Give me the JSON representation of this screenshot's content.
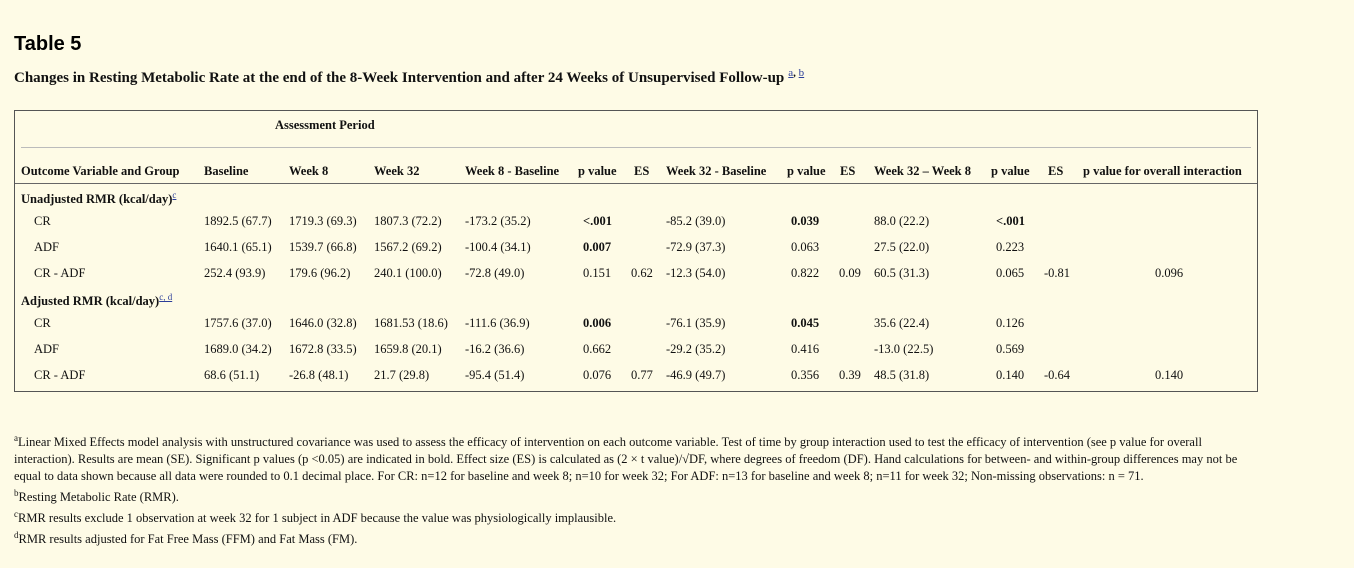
{
  "title": "Table 5",
  "caption": {
    "text": "Changes in Resting Metabolic Rate at the end of the 8-Week Intervention and after 24 Weeks of Unsupervised Follow-up",
    "link_a": "a",
    "separator": ", ",
    "link_b": "b"
  },
  "table": {
    "span_header": "Assessment Period",
    "columns": [
      "Outcome Variable and Group",
      "Baseline",
      "Week 8",
      "Week 32",
      "Week 8 - Baseline",
      "p value",
      "ES",
      "Week 32 - Baseline",
      "p value",
      "ES",
      "Week 32 – Week 8",
      "p value",
      "ES",
      "p value for overall interaction"
    ],
    "groups": [
      {
        "label": "Unadjusted RMR (kcal/day)",
        "sup": "c",
        "rows": [
          [
            "CR",
            "1892.5 (67.7)",
            "1719.3 (69.3)",
            "1807.3 (72.2)",
            "-173.2 (35.2)",
            "<.001",
            "",
            "-85.2 (39.0)",
            "0.039",
            "",
            "88.0 (22.2)",
            "<.001",
            "",
            ""
          ],
          [
            "ADF",
            "1640.1 (65.1)",
            "1539.7 (66.8)",
            "1567.2 (69.2)",
            "-100.4 (34.1)",
            "0.007",
            "",
            "-72.9 (37.3)",
            "0.063",
            "",
            "27.5 (22.0)",
            "0.223",
            "",
            ""
          ],
          [
            "CR - ADF",
            "252.4 (93.9)",
            "179.6 (96.2)",
            "240.1 (100.0)",
            "-72.8 (49.0)",
            "0.151",
            "0.62",
            "-12.3 (54.0)",
            "0.822",
            "0.09",
            "60.5 (31.3)",
            "0.065",
            "-0.81",
            "0.096"
          ]
        ]
      },
      {
        "label": "Adjusted RMR (kcal/day)",
        "sup": "c, d",
        "rows": [
          [
            "CR",
            "1757.6 (37.0)",
            "1646.0 (32.8)",
            "1681.53 (18.6)",
            "-111.6 (36.9)",
            "0.006",
            "",
            "-76.1 (35.9)",
            "0.045",
            "",
            "35.6 (22.4)",
            "0.126",
            "",
            ""
          ],
          [
            "ADF",
            "1689.0 (34.2)",
            "1672.8 (33.5)",
            "1659.8 (20.1)",
            "-16.2 (36.6)",
            "0.662",
            "",
            "-29.2 (35.2)",
            "0.416",
            "",
            "-13.0 (22.5)",
            "0.569",
            "",
            ""
          ],
          [
            "CR - ADF",
            "68.6 (51.1)",
            "-26.8 (48.1)",
            "21.7 (29.8)",
            "-95.4 (51.4)",
            "0.076",
            "0.77",
            "-46.9 (49.7)",
            "0.356",
            "0.39",
            "48.5 (31.8)",
            "0.140",
            "-0.64",
            "0.140"
          ]
        ]
      }
    ]
  },
  "footnotes": [
    {
      "mark": "a",
      "lines": [
        "Linear Mixed Effects model analysis with unstructured covariance was used to assess the efficacy of intervention on each outcome variable. Test of time by group interaction used to test the efficacy of intervention (see p value for overall",
        "interaction). Results are mean (SE). Significant p values (p <0.05) are indicated in bold. Effect size (ES) is calculated as (2 × t value)/√DF, where degrees of freedom (DF). Hand calculations for between- and within-group differences may not be",
        "equal to data shown because all data were rounded to 0.1 decimal place. For CR: n=12 for baseline and week 8; n=10 for week 32; For ADF: n=13 for baseline and week 8; n=11 for week 32; Non-missing observations: n = 71."
      ]
    },
    {
      "mark": "b",
      "lines": [
        "Resting Metabolic Rate (RMR)."
      ]
    },
    {
      "mark": "c",
      "lines": [
        "RMR results exclude 1 observation at week 32 for 1 subject in ADF because the value was physiologically implausible."
      ]
    },
    {
      "mark": "d",
      "lines": [
        "RMR results adjusted for Fat Free Mass (FFM) and Fat Mass (FM)."
      ]
    }
  ]
}
